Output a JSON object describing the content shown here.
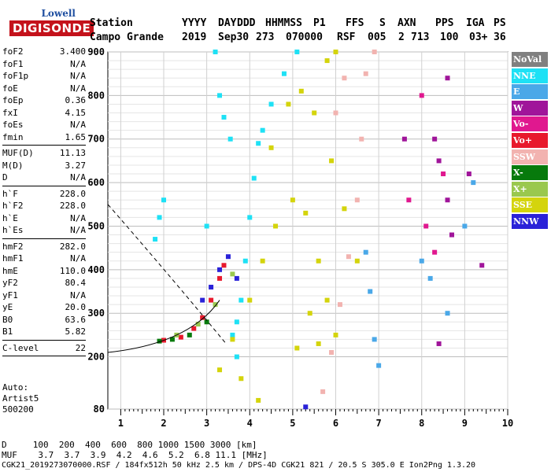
{
  "logo": {
    "top": "Lowell",
    "main": "DIGISONDE"
  },
  "header": {
    "row1": [
      "Station",
      "YYYY",
      "DAY",
      "DDD",
      "HHMMSS",
      "P1",
      "FFS",
      "S",
      "AXN",
      "PPS",
      "IGA",
      "PS"
    ],
    "row2": [
      "Campo Grande",
      "2019",
      "Sep30",
      "273",
      "070000",
      "RSF",
      "005",
      "2",
      "713",
      "100",
      "03+",
      "36"
    ]
  },
  "params": {
    "group1": [
      {
        "label": "foF2",
        "value": "3.400"
      },
      {
        "label": "foF1",
        "value": "N/A"
      },
      {
        "label": "foF1p",
        "value": "N/A"
      },
      {
        "label": "foE",
        "value": "N/A"
      },
      {
        "label": "foEp",
        "value": "0.36"
      },
      {
        "label": "fxI",
        "value": "4.15"
      },
      {
        "label": "foEs",
        "value": "N/A"
      },
      {
        "label": "fmin",
        "value": "1.65"
      }
    ],
    "group2": [
      {
        "label": "MUF(D)",
        "value": "11.13"
      },
      {
        "label": "M(D)",
        "value": "3.27"
      },
      {
        "label": "D",
        "value": "N/A"
      }
    ],
    "group3": [
      {
        "label": "h`F",
        "value": "228.0"
      },
      {
        "label": "h`F2",
        "value": "228.0"
      },
      {
        "label": "h`E",
        "value": "N/A"
      },
      {
        "label": "h`Es",
        "value": "N/A"
      }
    ],
    "group4": [
      {
        "label": "hmF2",
        "value": "282.0"
      },
      {
        "label": "hmF1",
        "value": "N/A"
      },
      {
        "label": "hmE",
        "value": "110.0"
      },
      {
        "label": "yF2",
        "value": "80.4"
      },
      {
        "label": "yF1",
        "value": "N/A"
      },
      {
        "label": "yE",
        "value": "20.0"
      },
      {
        "label": "B0",
        "value": "63.6"
      },
      {
        "label": "B1",
        "value": "5.82"
      }
    ],
    "group5": [
      {
        "label": "C-level",
        "value": "22"
      }
    ]
  },
  "auto": {
    "line1": "Auto:",
    "line2": "Artist5",
    "line3": "500200"
  },
  "legend": [
    {
      "label": "NoVal",
      "color": "#808080"
    },
    {
      "label": "NNE",
      "color": "#1ee1f5"
    },
    {
      "label": "E",
      "color": "#4aa8e8"
    },
    {
      "label": "W",
      "color": "#a0159a"
    },
    {
      "label": "Vo-",
      "color": "#e0188f"
    },
    {
      "label": "Vo+",
      "color": "#e8192c"
    },
    {
      "label": "SSW",
      "color": "#f2b3b0"
    },
    {
      "label": "X-",
      "color": "#077a0c"
    },
    {
      "label": "X+",
      "color": "#9ac84e"
    },
    {
      "label": "SSE",
      "color": "#d4d40c"
    },
    {
      "label": "NNW",
      "color": "#2a22d8"
    }
  ],
  "bottom": {
    "d_line": "D     100  200  400  600  800 1000 1500 3000 [km]",
    "muf_line": "MUF    3.7  3.7  3.9  4.2  4.6  5.2  6.8 11.1 [MHz]",
    "footer": "CGK21_2019273070000.RSF / 184fx512h 50 kHz 2.5 km / DPS-4D CGK21 821 / 20.5 S 305.0 E Ion2Png 1.3.20"
  },
  "chart_data": {
    "type": "scatter",
    "xlim": [
      0.7,
      10
    ],
    "ylim": [
      80,
      900
    ],
    "xticks": [
      "1",
      "2",
      "3",
      "4",
      "5",
      "6",
      "7",
      "8",
      "9",
      "10"
    ],
    "yticks": [
      "80",
      "200",
      "300",
      "400",
      "500",
      "600",
      "700",
      "800",
      "900"
    ],
    "grid": true,
    "series": [
      {
        "name": "NNE",
        "color": "#1ee1f5",
        "points": [
          [
            3.7,
            280
          ],
          [
            3.8,
            330
          ],
          [
            3.9,
            420
          ],
          [
            4.0,
            520
          ],
          [
            4.1,
            610
          ],
          [
            4.2,
            690
          ],
          [
            4.3,
            720
          ],
          [
            4.5,
            780
          ],
          [
            4.8,
            850
          ],
          [
            5.1,
            900
          ],
          [
            3.55,
            700
          ],
          [
            3.4,
            750
          ],
          [
            3.3,
            800
          ],
          [
            3.2,
            900
          ],
          [
            1.8,
            470
          ],
          [
            1.9,
            520
          ],
          [
            2.0,
            560
          ],
          [
            3.0,
            500
          ],
          [
            3.6,
            250
          ],
          [
            3.7,
            200
          ]
        ]
      },
      {
        "name": "SSE",
        "color": "#d4d40c",
        "points": [
          [
            3.3,
            170
          ],
          [
            3.6,
            240
          ],
          [
            4.0,
            330
          ],
          [
            4.3,
            420
          ],
          [
            4.6,
            500
          ],
          [
            5.0,
            560
          ],
          [
            5.3,
            530
          ],
          [
            5.6,
            420
          ],
          [
            5.8,
            330
          ],
          [
            6.0,
            250
          ],
          [
            4.5,
            680
          ],
          [
            4.9,
            780
          ],
          [
            5.2,
            810
          ],
          [
            5.5,
            760
          ],
          [
            5.9,
            650
          ],
          [
            6.2,
            540
          ],
          [
            6.5,
            420
          ],
          [
            3.8,
            150
          ],
          [
            4.2,
            100
          ],
          [
            5.1,
            220
          ],
          [
            5.4,
            300
          ],
          [
            5.6,
            230
          ],
          [
            6.0,
            900
          ],
          [
            5.8,
            880
          ]
        ]
      },
      {
        "name": "SSW",
        "color": "#f2b3b0",
        "points": [
          [
            5.7,
            120
          ],
          [
            5.9,
            210
          ],
          [
            6.1,
            320
          ],
          [
            6.3,
            430
          ],
          [
            6.5,
            560
          ],
          [
            6.6,
            700
          ],
          [
            6.7,
            850
          ],
          [
            6.9,
            900
          ],
          [
            6.0,
            760
          ],
          [
            6.2,
            840
          ]
        ]
      },
      {
        "name": "E",
        "color": "#4aa8e8",
        "points": [
          [
            6.8,
            350
          ],
          [
            6.9,
            240
          ],
          [
            7.0,
            180
          ],
          [
            8.0,
            420
          ],
          [
            8.2,
            380
          ],
          [
            8.6,
            300
          ],
          [
            9.0,
            500
          ],
          [
            9.2,
            600
          ],
          [
            6.7,
            440
          ]
        ]
      },
      {
        "name": "W",
        "color": "#a0159a",
        "points": [
          [
            8.3,
            700
          ],
          [
            8.4,
            650
          ],
          [
            8.6,
            560
          ],
          [
            8.7,
            480
          ],
          [
            9.1,
            620
          ],
          [
            9.4,
            410
          ],
          [
            8.4,
            230
          ],
          [
            8.6,
            840
          ],
          [
            7.6,
            700
          ]
        ]
      },
      {
        "name": "Vo-",
        "color": "#e0188f",
        "points": [
          [
            8.1,
            500
          ],
          [
            8.3,
            440
          ],
          [
            8.5,
            620
          ],
          [
            7.7,
            560
          ],
          [
            8.0,
            800
          ]
        ]
      },
      {
        "name": "Vo+",
        "color": "#e8192c",
        "points": [
          [
            2.0,
            238
          ],
          [
            2.4,
            245
          ],
          [
            2.7,
            265
          ],
          [
            2.9,
            290
          ],
          [
            3.1,
            330
          ],
          [
            3.3,
            380
          ],
          [
            3.4,
            410
          ]
        ]
      },
      {
        "name": "X-",
        "color": "#077a0c",
        "points": [
          [
            1.9,
            236
          ],
          [
            2.2,
            240
          ],
          [
            2.6,
            250
          ],
          [
            3.0,
            280
          ]
        ]
      },
      {
        "name": "X+",
        "color": "#9ac84e",
        "points": [
          [
            2.3,
            250
          ],
          [
            2.8,
            275
          ],
          [
            3.2,
            320
          ],
          [
            3.6,
            390
          ]
        ]
      },
      {
        "name": "NNW",
        "color": "#2a22d8",
        "points": [
          [
            2.9,
            330
          ],
          [
            3.1,
            360
          ],
          [
            3.3,
            400
          ],
          [
            3.5,
            430
          ],
          [
            3.7,
            380
          ],
          [
            5.3,
            85
          ]
        ]
      }
    ]
  }
}
